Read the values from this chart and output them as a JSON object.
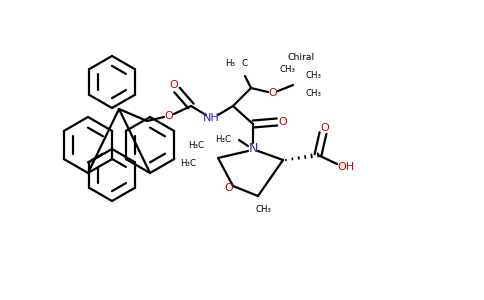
{
  "background_color": "#ffffff",
  "figure_size": [
    4.84,
    3.0
  ],
  "dpi": 100,
  "bond_color": "#000000",
  "bond_width": 1.6,
  "n_color": "#2222cc",
  "o_color": "#cc0000",
  "font_size": 7.0,
  "small_font_size": 6.2,
  "chiral_text": "Chiral",
  "ch3_labels": [
    "CH₃",
    "CH₃",
    "CH₃"
  ],
  "h3c_label": "H₃C",
  "nh_label": "NH",
  "n_label": "N",
  "o_label": "O",
  "oh_label": "OH",
  "c_label": "C"
}
